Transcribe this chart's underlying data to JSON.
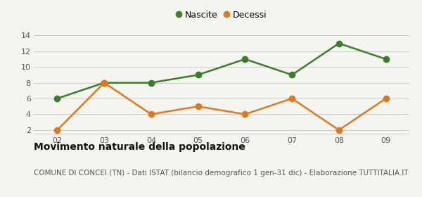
{
  "x": [
    2,
    3,
    4,
    5,
    6,
    7,
    8,
    9
  ],
  "nascite": [
    6,
    8,
    8,
    9,
    11,
    9,
    13,
    11
  ],
  "decessi": [
    2,
    8,
    4,
    5,
    4,
    6,
    2,
    6
  ],
  "nascite_color": "#3a7d2c",
  "decessi_color": "#e07820",
  "ylim": [
    1.5,
    14.5
  ],
  "yticks": [
    2,
    4,
    6,
    8,
    10,
    12,
    14
  ],
  "xtick_labels": [
    "02",
    "03",
    "04",
    "05",
    "06",
    "07",
    "08",
    "09"
  ],
  "legend_nascite": "Nascite",
  "legend_decessi": "Decessi",
  "title": "Movimento naturale della popolazione",
  "subtitle": "COMUNE DI CONCEI (TN) - Dati ISTAT (bilancio demografico 1 gen-31 dic) - Elaborazione TUTTITALIA.IT",
  "title_fontsize": 10,
  "subtitle_fontsize": 7.5,
  "bg_color": "#f5f5f0",
  "grid_color": "#cccccc",
  "marker_size": 6,
  "line_width": 1.8
}
